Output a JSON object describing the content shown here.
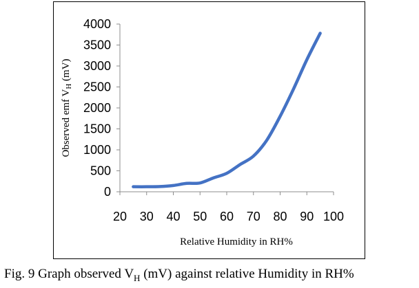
{
  "chart_data": {
    "type": "line",
    "title": "",
    "xlabel": "Relative Humidity in RH%",
    "ylabel": "Observed emf V_H (mV)",
    "ylabel_parts": {
      "pre": "Observed emf V",
      "sub": "H",
      "post": " (mV)"
    },
    "xlim": [
      20,
      100
    ],
    "ylim": [
      0,
      4000
    ],
    "xticks": [
      20,
      30,
      40,
      50,
      60,
      70,
      80,
      90,
      100
    ],
    "yticks": [
      0,
      500,
      1000,
      1500,
      2000,
      2500,
      3000,
      3500,
      4000
    ],
    "grid": false,
    "legend": "none",
    "series": [
      {
        "name": "Observed emf",
        "color": "#4472c4",
        "x": [
          25,
          30,
          35,
          40,
          45,
          50,
          55,
          60,
          65,
          70,
          75,
          80,
          85,
          90,
          95
        ],
        "y": [
          120,
          120,
          125,
          150,
          200,
          210,
          330,
          440,
          650,
          850,
          1230,
          1800,
          2450,
          3150,
          3780
        ]
      }
    ]
  },
  "caption": {
    "pre": "Fig. 9 Graph observed V",
    "sub": "H",
    "post": " (mV) against relative   Humidity in RH%"
  }
}
